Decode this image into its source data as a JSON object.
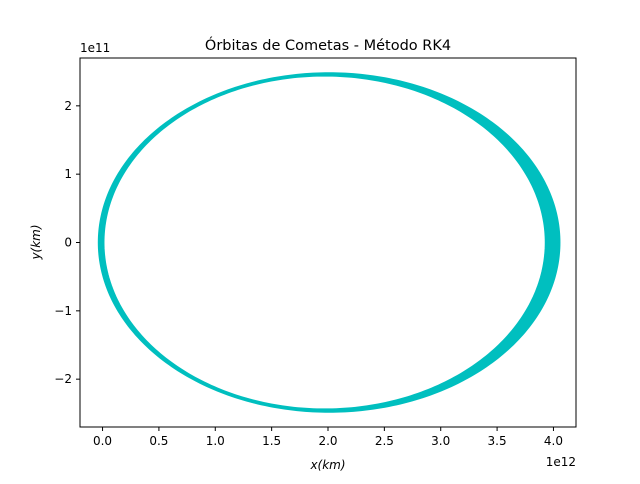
{
  "chart_data": {
    "type": "line",
    "title": "Órbitas de Cometas - Método RK4",
    "xlabel": "x(km)",
    "ylabel": "y(km)",
    "x_offset_label": "1e12",
    "y_offset_label": "1e11",
    "xlim": [
      -0.2,
      4.2
    ],
    "ylim": [
      -2.7,
      2.7
    ],
    "x_ticks": [
      0.0,
      0.5,
      1.0,
      1.5,
      2.0,
      2.5,
      3.0,
      3.5,
      4.0
    ],
    "x_tick_labels": [
      "0.0",
      "0.5",
      "1.0",
      "1.5",
      "2.0",
      "2.5",
      "3.0",
      "3.5",
      "4.0"
    ],
    "y_ticks": [
      -2,
      -1,
      0,
      1,
      2
    ],
    "y_tick_labels": [
      "−2",
      "−1",
      "0",
      "1",
      "2"
    ],
    "grid": false,
    "series_color": "#00bfbf",
    "series": [
      {
        "orbit": {
          "center_x": 1.97,
          "semi_axis_x": 1.96,
          "semi_axis_y": 2.44,
          "band_outer_x": 2.045,
          "band_outer_y": 2.48,
          "band_outer_center_x": 2.01
        }
      }
    ]
  }
}
